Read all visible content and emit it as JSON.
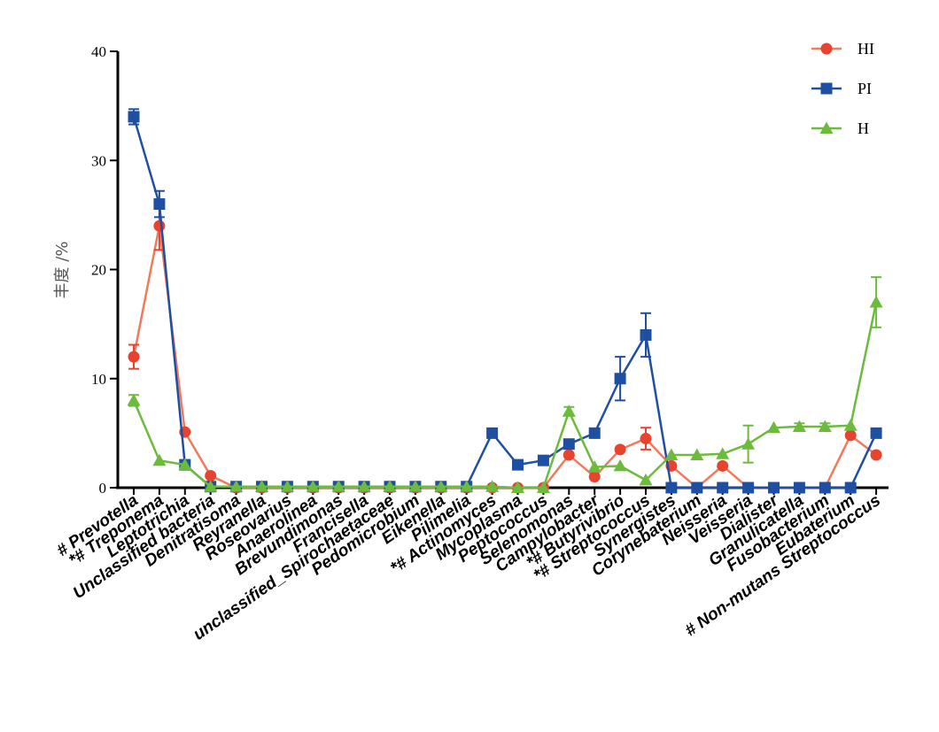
{
  "chart_data": {
    "type": "line",
    "title": "",
    "xlabel": "",
    "ylabel": "丰度 /%",
    "ylim": [
      0,
      40
    ],
    "yticks": [
      0,
      10,
      20,
      30,
      40
    ],
    "legend_position": "top-right",
    "grid": false,
    "categories": [
      "# Prevotella",
      "*# Treponema",
      "Leptotrichia",
      "Unclassified bacteria",
      "Denitratisoma",
      "Reyranella",
      "Roseovarius",
      "Anaerolinea",
      "Brevundimonas",
      "Francisella",
      "unclassified_Spirochaetaceae",
      "Pedomicrobium",
      "Eikenella",
      "Pilimelia",
      "*# Actinomyces",
      "Mycoplasma",
      "Peptococcus",
      "Selenomonas",
      "Campylobacter",
      "*# Butyrivibrio",
      "*# Streptococcus",
      "Synergistes",
      "Corynebaterium",
      "Neisseria",
      "Veisseria",
      "Dialister",
      "Granulicatella",
      "Fusobacterium",
      "Eubaterium",
      "# Non-mutans Streptococcus"
    ],
    "series": [
      {
        "name": "HI",
        "color": "#e8432f",
        "line_color": "#f07a5c",
        "marker": "circle",
        "values": [
          12,
          24,
          5.1,
          1.1,
          0,
          0,
          0,
          0,
          0,
          0,
          0,
          0,
          0,
          0,
          0,
          0,
          0,
          3,
          1,
          3.5,
          4.5,
          2,
          0,
          2,
          0,
          0,
          0,
          0,
          4.8,
          3
        ],
        "errors": [
          1.1,
          2.2,
          0,
          0,
          0,
          0,
          0,
          0,
          0,
          0,
          0,
          0,
          0,
          0,
          0,
          0,
          0,
          0,
          0,
          0,
          1,
          0,
          0,
          0,
          0,
          0,
          0,
          0,
          0,
          0
        ]
      },
      {
        "name": "PI",
        "color": "#1f4fa3",
        "line_color": "#1f4fa3",
        "marker": "square",
        "values": [
          34,
          26,
          2.1,
          0.1,
          0.1,
          0.1,
          0.1,
          0.1,
          0.1,
          0.1,
          0.1,
          0.1,
          0.1,
          0.1,
          5,
          2.1,
          2.5,
          4,
          5,
          10,
          14,
          0,
          0,
          0,
          0,
          0,
          0,
          0,
          0,
          5
        ],
        "errors": [
          0.7,
          1.2,
          0,
          0,
          0,
          0,
          0,
          0,
          0,
          0,
          0,
          0,
          0,
          0,
          0,
          0,
          0,
          0,
          0,
          2,
          2,
          0,
          0,
          0,
          0,
          0,
          0,
          0,
          0,
          0
        ]
      },
      {
        "name": "H",
        "color": "#6cbb3c",
        "line_color": "#6cbb3c",
        "marker": "triangle",
        "values": [
          8,
          2.5,
          2.1,
          0.1,
          0.1,
          0.1,
          0.1,
          0.1,
          0.1,
          0.1,
          0.1,
          0.1,
          0.1,
          0.1,
          0.1,
          0,
          0,
          7,
          1.9,
          2,
          0.7,
          3,
          3,
          3.1,
          4,
          5.5,
          5.6,
          5.6,
          5.7,
          17
        ],
        "errors": [
          0.5,
          0,
          0,
          0,
          0,
          0,
          0,
          0,
          0,
          0,
          0,
          0,
          0,
          0,
          0,
          0,
          0,
          0.4,
          0,
          0,
          0,
          0,
          0,
          0,
          1.7,
          0,
          0.3,
          0.3,
          0,
          2.3
        ]
      }
    ]
  }
}
